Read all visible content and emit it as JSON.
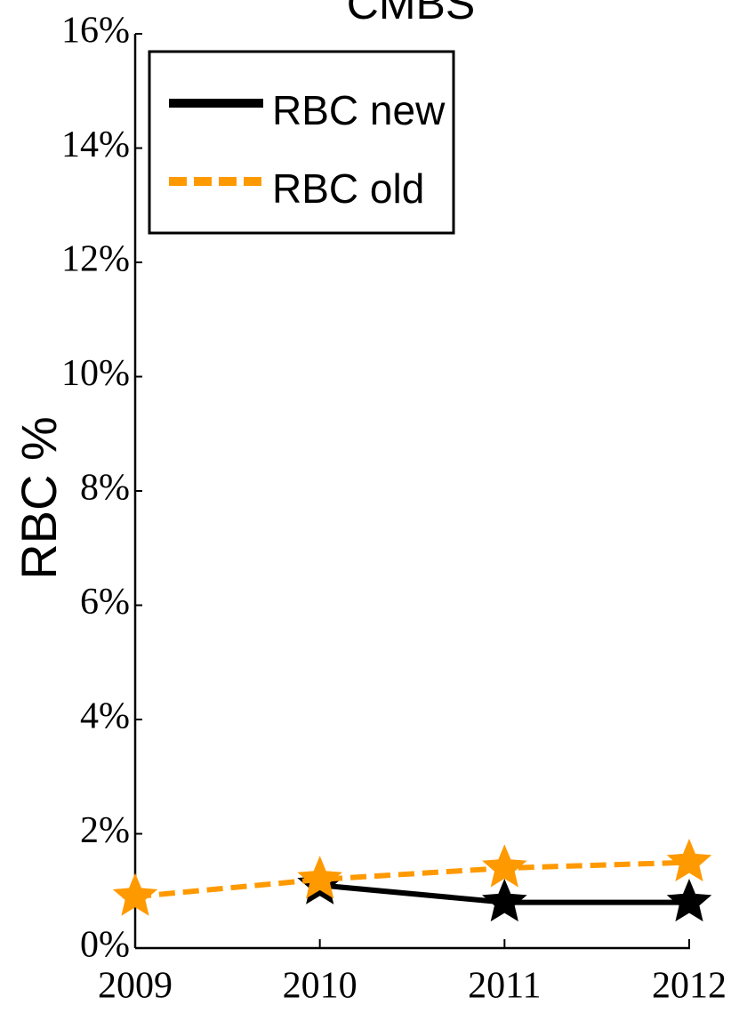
{
  "chart_data": {
    "type": "line",
    "title": "CMBS",
    "y_label": "RBC %",
    "x": [
      2009,
      2010,
      2011,
      2012
    ],
    "series": [
      {
        "name": "RBC new",
        "color": "#000000",
        "line_style": "solid",
        "marker": "star",
        "values": [
          null,
          1.1,
          0.8,
          0.8
        ]
      },
      {
        "name": "RBC old",
        "color": "#ff9900",
        "line_style": "dashed",
        "marker": "star",
        "values": [
          0.9,
          1.2,
          1.4,
          1.5
        ]
      }
    ],
    "xlim": [
      2009,
      2012
    ],
    "xticks": [
      2009,
      2010,
      2011,
      2012
    ],
    "ylim": [
      0,
      16
    ],
    "yticks": [
      {
        "value": 0,
        "label": "0%"
      },
      {
        "value": 2,
        "label": "2%"
      },
      {
        "value": 4,
        "label": "4%"
      },
      {
        "value": 6,
        "label": "6%"
      },
      {
        "value": 8,
        "label": "8%"
      },
      {
        "value": 10,
        "label": "10%"
      },
      {
        "value": 12,
        "label": "12%"
      },
      {
        "value": 14,
        "label": "14%"
      },
      {
        "value": 16,
        "label": "16%"
      }
    ],
    "legend": "upper left",
    "grid": false
  }
}
